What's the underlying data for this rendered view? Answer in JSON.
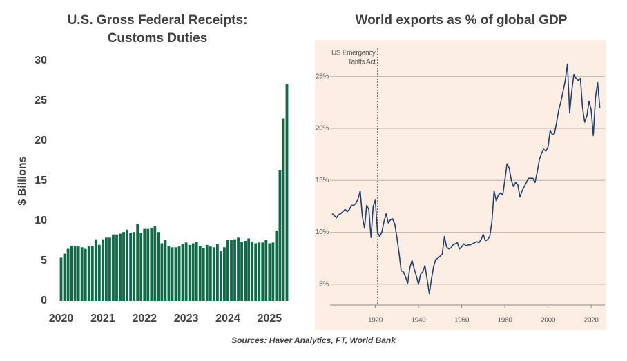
{
  "chart_data": [
    {
      "type": "bar",
      "title": [
        "U.S. Gross Federal Receipts:",
        "Customs Duties"
      ],
      "y_label": "$ Billions",
      "categories": [
        "2020",
        null,
        null,
        null,
        null,
        null,
        null,
        null,
        null,
        null,
        null,
        null,
        "2021",
        null,
        null,
        null,
        null,
        null,
        null,
        null,
        null,
        null,
        null,
        null,
        "2022",
        null,
        null,
        null,
        null,
        null,
        null,
        null,
        null,
        null,
        null,
        null,
        "2023",
        null,
        null,
        null,
        null,
        null,
        null,
        null,
        null,
        null,
        null,
        null,
        "2024",
        null,
        null,
        null,
        null,
        null,
        null,
        null,
        null,
        null,
        null,
        null,
        "2025",
        null,
        null,
        null,
        null,
        null
      ],
      "values": [
        5.4,
        5.9,
        6.5,
        6.9,
        6.9,
        6.8,
        6.7,
        6.5,
        6.8,
        6.9,
        7.7,
        7.0,
        7.7,
        7.9,
        7.9,
        8.3,
        8.3,
        8.4,
        8.6,
        8.9,
        8.5,
        8.6,
        9.6,
        8.5,
        9.0,
        9.0,
        9.1,
        9.3,
        8.6,
        7.2,
        7.6,
        6.8,
        6.7,
        6.7,
        6.8,
        7.1,
        7.3,
        7.0,
        7.2,
        7.4,
        6.9,
        6.6,
        7.0,
        6.8,
        6.7,
        7.1,
        6.2,
        6.7,
        7.6,
        7.6,
        7.7,
        7.9,
        7.4,
        7.5,
        7.8,
        7.4,
        7.2,
        7.3,
        7.3,
        7.6,
        7.2,
        7.3,
        8.8,
        16.3,
        22.8,
        27.1
      ],
      "color": "#0f6b47",
      "ylim": [
        0,
        30
      ],
      "yticks": [
        0,
        5,
        10,
        15,
        20,
        25,
        30
      ]
    },
    {
      "type": "line",
      "title": "World exports as % of global GDP",
      "annotation": {
        "x": 1921,
        "lines": [
          "US Emergency",
          "Tariffs Act"
        ]
      },
      "x": [
        1900,
        1901,
        1902,
        1903,
        1904,
        1905,
        1906,
        1907,
        1908,
        1909,
        1910,
        1911,
        1912,
        1913,
        1914,
        1915,
        1916,
        1917,
        1918,
        1919,
        1920,
        1921,
        1922,
        1923,
        1924,
        1925,
        1926,
        1927,
        1928,
        1929,
        1930,
        1931,
        1932,
        1933,
        1934,
        1935,
        1936,
        1937,
        1938,
        1939,
        1940,
        1941,
        1942,
        1943,
        1944,
        1945,
        1946,
        1947,
        1948,
        1949,
        1950,
        1951,
        1952,
        1953,
        1954,
        1955,
        1956,
        1957,
        1958,
        1959,
        1960,
        1961,
        1962,
        1963,
        1964,
        1965,
        1966,
        1967,
        1968,
        1969,
        1970,
        1971,
        1972,
        1973,
        1974,
        1975,
        1976,
        1977,
        1978,
        1979,
        1980,
        1981,
        1982,
        1983,
        1984,
        1985,
        1986,
        1987,
        1988,
        1989,
        1990,
        1991,
        1992,
        1993,
        1994,
        1995,
        1996,
        1997,
        1998,
        1999,
        2000,
        2001,
        2002,
        2003,
        2004,
        2005,
        2006,
        2007,
        2008,
        2009,
        2010,
        2011,
        2012,
        2013,
        2014,
        2015,
        2016,
        2017,
        2018,
        2019,
        2020,
        2021,
        2022,
        2023,
        2024
      ],
      "series": [
        {
          "name": null,
          "color": "#1f3f73",
          "values": [
            11.8,
            11.6,
            11.4,
            11.7,
            11.8,
            12.0,
            12.2,
            12.0,
            12.2,
            12.6,
            12.6,
            12.8,
            13.2,
            14.0,
            11.5,
            10.4,
            12.6,
            12.2,
            9.5,
            12.5,
            13.1,
            10.0,
            9.6,
            10.0,
            11.0,
            11.8,
            10.9,
            11.2,
            11.3,
            10.8,
            9.5,
            8.0,
            6.3,
            6.2,
            5.7,
            5.1,
            6.6,
            7.3,
            6.5,
            5.8,
            5.0,
            6.0,
            6.2,
            6.8,
            5.5,
            4.1,
            5.5,
            6.7,
            7.4,
            7.5,
            7.7,
            7.9,
            9.6,
            8.6,
            8.4,
            8.5,
            8.8,
            8.9,
            9.0,
            8.4,
            8.6,
            8.9,
            8.7,
            8.8,
            8.8,
            8.9,
            9.0,
            9.1,
            9.0,
            9.3,
            9.8,
            9.2,
            9.3,
            9.6,
            11.0,
            14.0,
            13.0,
            13.6,
            13.8,
            13.6,
            15.0,
            16.6,
            16.2,
            15.0,
            14.4,
            14.8,
            14.6,
            13.4,
            14.0,
            14.4,
            14.8,
            15.2,
            15.2,
            15.2,
            14.8,
            15.8,
            17.0,
            17.6,
            18.0,
            17.8,
            18.2,
            19.8,
            19.4,
            19.5,
            20.6,
            21.8,
            22.6,
            23.6,
            24.6,
            26.2,
            21.5,
            23.6,
            25.2,
            24.8,
            24.6,
            24.8,
            22.0,
            20.6,
            21.2,
            22.6,
            21.8,
            19.3,
            23.0,
            24.4,
            22.0
          ]
        }
      ],
      "background": "#fdeee3",
      "xlim": [
        1892,
        2027
      ],
      "xticks": [
        1920,
        1940,
        1960,
        1980,
        2000,
        2020
      ],
      "ylim": [
        3,
        28.5
      ],
      "yticks": [
        {
          "value": 5,
          "label": "5%"
        },
        {
          "value": 10,
          "label": "10%"
        },
        {
          "value": 15,
          "label": "15%"
        },
        {
          "value": 20,
          "label": "20%"
        },
        {
          "value": 25,
          "label": "25%"
        }
      ],
      "grid": true
    }
  ],
  "source": "Sources: Haver Analytics, FT, World Bank"
}
